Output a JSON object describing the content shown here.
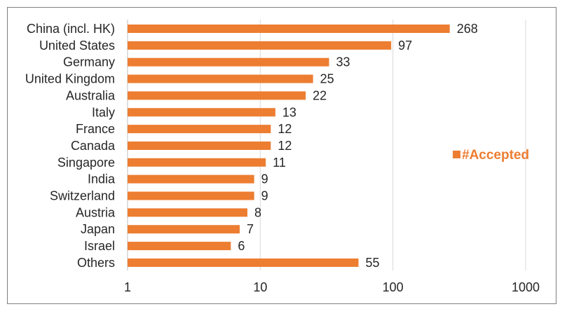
{
  "chart_data": {
    "type": "bar",
    "orientation": "horizontal",
    "xscale": "log",
    "xlim": [
      1,
      1000
    ],
    "xticks": [
      "1",
      "10",
      "100",
      "1000"
    ],
    "xtick_values": [
      1,
      10,
      100,
      1000
    ],
    "grid": true,
    "legend_position": "right",
    "bar_color": "#ED7D31",
    "categories": [
      "China (incl. HK)",
      "United States",
      "Germany",
      "United Kingdom",
      "Australia",
      "Italy",
      "France",
      "Canada",
      "Singapore",
      "India",
      "Switzerland",
      "Austria",
      "Japan",
      "Israel",
      "Others"
    ],
    "series": [
      {
        "name": "#Accepted",
        "values": [
          268,
          97,
          33,
          25,
          22,
          13,
          12,
          12,
          11,
          9,
          9,
          8,
          7,
          6,
          55
        ]
      }
    ],
    "data_labels": [
      "268",
      "97",
      "33",
      "25",
      "22",
      "13",
      "12",
      "12",
      "11",
      "9",
      "9",
      "8",
      "7",
      "6",
      "55"
    ]
  }
}
